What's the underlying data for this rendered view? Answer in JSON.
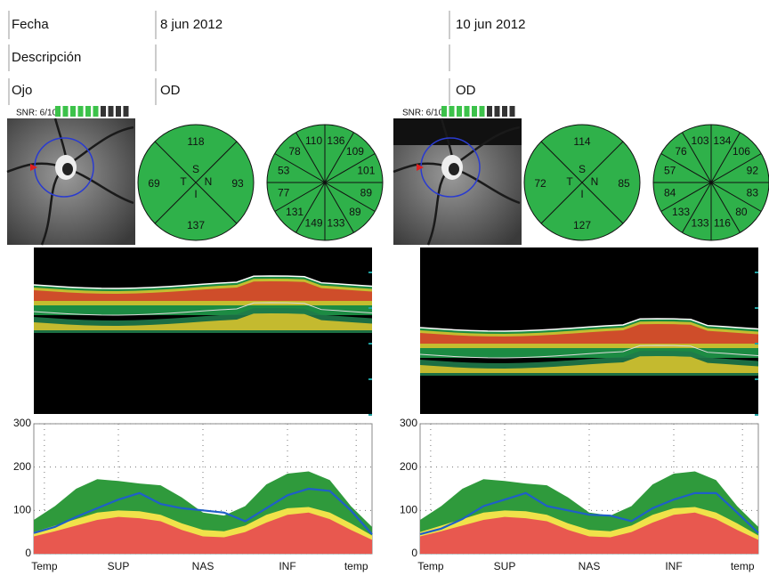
{
  "header": {
    "fecha_label": "Fecha",
    "descripcion_label": "Descripción",
    "ojo_label": "Ojo"
  },
  "exams": [
    {
      "date": "8 jun 2012",
      "eye": "OD",
      "snr": "SNR: 6/10",
      "snr_bars": {
        "filled": 6,
        "total": 10
      },
      "quadrants": [
        {
          "label": "S",
          "value": 118
        },
        {
          "label": "N",
          "value": 93
        },
        {
          "label": "I",
          "value": 137
        },
        {
          "label": "T",
          "value": 69
        }
      ],
      "clock": [
        136,
        109,
        101,
        89,
        89,
        133,
        149,
        131,
        77,
        53,
        78,
        110
      ]
    },
    {
      "date": "10 jun 2012",
      "eye": "OD",
      "snr": "SNR: 6/10",
      "snr_bars": {
        "filled": 6,
        "total": 10
      },
      "quadrants": [
        {
          "label": "S",
          "value": 114
        },
        {
          "label": "N",
          "value": 85
        },
        {
          "label": "I",
          "value": 127
        },
        {
          "label": "T",
          "value": 72
        }
      ],
      "clock": [
        134,
        106,
        92,
        83,
        80,
        116,
        133,
        133,
        84,
        57,
        76,
        103
      ]
    }
  ],
  "chart_data": [
    {
      "type": "line",
      "x": [
        0,
        16,
        32,
        48,
        64,
        80,
        96,
        112,
        128,
        144,
        160,
        176,
        192,
        208,
        224,
        240,
        256
      ],
      "xlim": [
        0,
        256
      ],
      "ylim": [
        0,
        300
      ],
      "yticks": [
        0,
        100,
        200,
        300
      ],
      "grid": true,
      "xticks": [
        {
          "value": 8,
          "label": "Temp"
        },
        {
          "value": 64,
          "label": "SUP"
        },
        {
          "value": 128,
          "label": "NAS"
        },
        {
          "value": 192,
          "label": "INF"
        },
        {
          "value": 244,
          "label": "temp"
        }
      ],
      "series": [
        {
          "style": "area",
          "color": "#2f9a3c",
          "values": [
            78,
            110,
            150,
            172,
            168,
            162,
            158,
            130,
            95,
            88,
            110,
            160,
            185,
            190,
            170,
            110,
            62
          ]
        },
        {
          "style": "area",
          "color": "#f0e24a",
          "values": [
            50,
            65,
            80,
            95,
            100,
            98,
            90,
            70,
            55,
            52,
            65,
            90,
            105,
            108,
            95,
            70,
            42
          ]
        },
        {
          "style": "area",
          "color": "#e8584f",
          "values": [
            40,
            52,
            65,
            78,
            85,
            82,
            75,
            55,
            40,
            38,
            50,
            72,
            90,
            95,
            80,
            55,
            32
          ]
        },
        {
          "style": "line",
          "color": "#1f5fc8",
          "values": [
            48,
            62,
            85,
            105,
            125,
            140,
            115,
            105,
            100,
            95,
            75,
            105,
            135,
            150,
            145,
            100,
            45
          ]
        }
      ]
    },
    {
      "type": "line",
      "x": [
        0,
        16,
        32,
        48,
        64,
        80,
        96,
        112,
        128,
        144,
        160,
        176,
        192,
        208,
        224,
        240,
        256
      ],
      "xlim": [
        0,
        256
      ],
      "ylim": [
        0,
        300
      ],
      "yticks": [
        0,
        100,
        200,
        300
      ],
      "grid": true,
      "xticks": [
        {
          "value": 8,
          "label": "Temp"
        },
        {
          "value": 64,
          "label": "SUP"
        },
        {
          "value": 128,
          "label": "NAS"
        },
        {
          "value": 192,
          "label": "INF"
        },
        {
          "value": 244,
          "label": "temp"
        }
      ],
      "series": [
        {
          "style": "area",
          "color": "#2f9a3c",
          "values": [
            78,
            110,
            150,
            172,
            168,
            162,
            158,
            130,
            95,
            88,
            110,
            160,
            185,
            190,
            170,
            110,
            62
          ]
        },
        {
          "style": "area",
          "color": "#f0e24a",
          "values": [
            50,
            65,
            80,
            95,
            100,
            98,
            90,
            70,
            55,
            52,
            65,
            90,
            105,
            108,
            95,
            70,
            42
          ]
        },
        {
          "style": "area",
          "color": "#e8584f",
          "values": [
            40,
            52,
            65,
            78,
            85,
            82,
            75,
            55,
            40,
            38,
            50,
            72,
            90,
            95,
            80,
            55,
            32
          ]
        },
        {
          "style": "line",
          "color": "#1f5fc8",
          "values": [
            45,
            58,
            80,
            110,
            125,
            140,
            110,
            100,
            90,
            88,
            75,
            105,
            125,
            140,
            140,
            95,
            48
          ]
        }
      ]
    }
  ]
}
